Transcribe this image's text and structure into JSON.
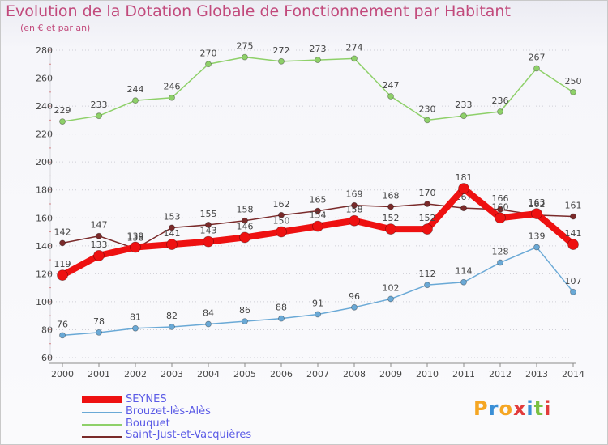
{
  "header": {
    "title": "Evolution de la Dotation Globale de Fonctionnement par Habitant",
    "subtitle": "(en € et par an)"
  },
  "logo": {
    "text": "Proxiti",
    "letters": [
      "P",
      "r",
      "o",
      "x",
      "i",
      "t",
      "i"
    ],
    "colors": [
      "#f5a623",
      "#3a8fd6",
      "#f5a623",
      "#e23b3b",
      "#3a8fd6",
      "#7ac142",
      "#e23b3b"
    ]
  },
  "chart_data": {
    "type": "line",
    "title": "Evolution de la Dotation Globale de Fonctionnement par Habitant",
    "subtitle": "(en € et par an)",
    "x": [
      "2000",
      "2001",
      "2002",
      "2003",
      "2004",
      "2005",
      "2006",
      "2007",
      "2008",
      "2009",
      "2010",
      "2011",
      "2012",
      "2013",
      "2014"
    ],
    "ylim": [
      60,
      280
    ],
    "yticks": [
      60,
      80,
      100,
      120,
      140,
      160,
      180,
      200,
      220,
      240,
      260,
      280
    ],
    "grid": "horizontal dotted",
    "legend_position": "bottom-left",
    "series": [
      {
        "name": "Saint-Just-et-Vacquières",
        "color": "#7a2a2a",
        "values": [
          142,
          147,
          138,
          153,
          155,
          158,
          162,
          165,
          169,
          168,
          170,
          167,
          166,
          162,
          161
        ],
        "labels": [
          "142",
          "147",
          "138",
          "153",
          "155",
          "158",
          "162",
          "165",
          "169",
          "168",
          "170",
          "167",
          "166",
          "162",
          "161"
        ]
      },
      {
        "name": "Bouquet",
        "color": "#8ed069",
        "values": [
          229,
          233,
          244,
          246,
          270,
          275,
          272,
          273,
          274,
          247,
          230,
          233,
          236,
          267,
          250
        ],
        "labels": [
          "229",
          "233",
          "244",
          "246",
          "270",
          "275",
          "272",
          "273",
          "274",
          "247",
          "230",
          "233",
          "236",
          "267",
          "250"
        ]
      },
      {
        "name": "Brouzet-lès-Alès",
        "color": "#6aa9d6",
        "values": [
          76,
          78,
          81,
          82,
          84,
          86,
          88,
          91,
          96,
          102,
          112,
          114,
          128,
          139,
          107
        ],
        "labels": [
          "76",
          "78",
          "81",
          "82",
          "84",
          "86",
          "88",
          "91",
          "96",
          "102",
          "112",
          "114",
          "128",
          "139",
          "107"
        ]
      },
      {
        "name": "SEYNES",
        "color": "#ee1111",
        "values": [
          119,
          133,
          139,
          141,
          143,
          146,
          150,
          154,
          158,
          152,
          152,
          181,
          160,
          163,
          141
        ],
        "labels": [
          "119",
          "133",
          "139",
          "141",
          "143",
          "146",
          "150",
          "154",
          "158",
          "152",
          "152",
          "181",
          "160",
          "163",
          "141"
        ]
      }
    ],
    "legend": [
      {
        "name": "SEYNES",
        "color": "#ee1111",
        "text_color": "#5b5be6"
      },
      {
        "name": "Brouzet-lès-Alès",
        "color": "#6aa9d6",
        "text_color": "#5b5be6"
      },
      {
        "name": "Bouquet",
        "color": "#8ed069",
        "text_color": "#5b5be6"
      },
      {
        "name": "Saint-Just-et-Vacquières",
        "color": "#7a2a2a",
        "text_color": "#5b5be6"
      }
    ]
  }
}
